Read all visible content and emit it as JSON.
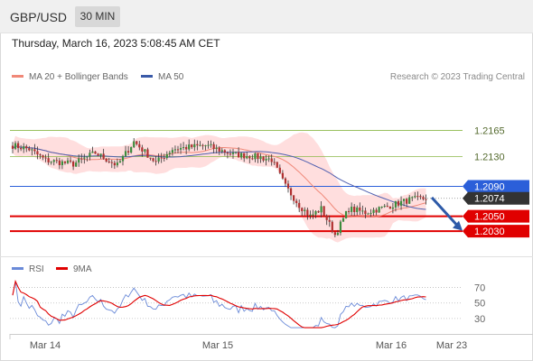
{
  "header": {
    "symbol": "GBP/USD",
    "timeframe": "30 MIN"
  },
  "datetime": "Thursday, March 16, 2023 5:08:45 AM CET",
  "copyright": "Research © 2023 Trading Central",
  "legend": {
    "ma20": "MA 20 + Bollinger Bands",
    "ma50": "MA 50",
    "rsi": "RSI",
    "rsi_ma": "9MA"
  },
  "colors": {
    "band": "#ffd3d3",
    "ma20": "#f08878",
    "ma50": "#5060b0",
    "bull": "#3c8c3c",
    "bear": "#b03030",
    "support": "#e00000",
    "pivot": "#2b5fd9",
    "current": "#333333",
    "resistance": "#8cb84a",
    "rsi": "#6a8ad8",
    "rsi_ma": "#e00000"
  },
  "chart_data": [
    {
      "type": "candlestick",
      "y_range": [
        1.1995,
        1.2225
      ],
      "x_labels": [
        "Mar 14",
        "Mar 15",
        "Mar 16",
        "Mar 23"
      ],
      "levels": [
        {
          "value": 1.2165,
          "label": "1.2165",
          "kind": "resistance"
        },
        {
          "value": 1.213,
          "label": "1.2130",
          "kind": "resistance"
        },
        {
          "value": 1.209,
          "label": "1.2090",
          "kind": "pivot"
        },
        {
          "value": 1.2074,
          "label": "1.2074",
          "kind": "current"
        },
        {
          "value": 1.205,
          "label": "1.2050",
          "kind": "support"
        },
        {
          "value": 1.203,
          "label": "1.2030",
          "kind": "support"
        }
      ],
      "forecast_arrow": {
        "from": 1.2075,
        "to": 1.2033
      }
    },
    {
      "type": "line",
      "name": "RSI",
      "y_ticks": [
        70,
        50,
        30
      ],
      "y_range": [
        10,
        80
      ]
    }
  ]
}
